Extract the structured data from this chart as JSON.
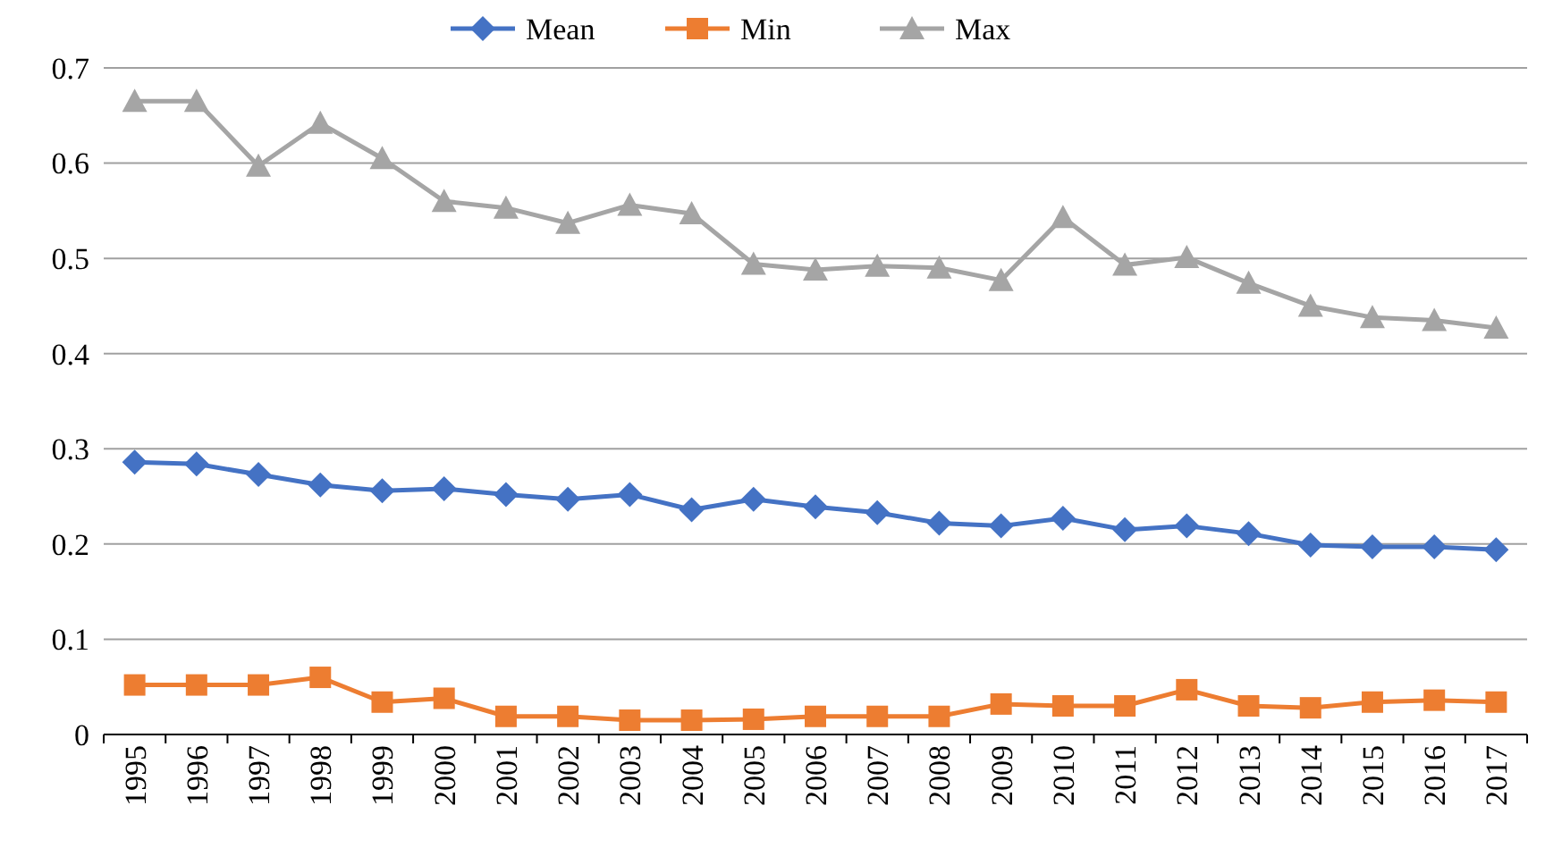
{
  "chart_data": {
    "type": "line",
    "categories": [
      "1995",
      "1996",
      "1997",
      "1998",
      "1999",
      "2000",
      "2001",
      "2002",
      "2003",
      "2004",
      "2005",
      "2006",
      "2007",
      "2008",
      "2009",
      "2010",
      "2011",
      "2012",
      "2013",
      "2014",
      "2015",
      "2016",
      "2017"
    ],
    "series": [
      {
        "name": "Mean",
        "color": "#4472c4",
        "marker": "diamond",
        "values": [
          0.286,
          0.284,
          0.273,
          0.262,
          0.256,
          0.258,
          0.252,
          0.247,
          0.252,
          0.236,
          0.247,
          0.239,
          0.233,
          0.222,
          0.219,
          0.227,
          0.215,
          0.219,
          0.211,
          0.199,
          0.197,
          0.197,
          0.194
        ]
      },
      {
        "name": "Min",
        "color": "#ed7d31",
        "marker": "square",
        "values": [
          0.052,
          0.052,
          0.052,
          0.06,
          0.034,
          0.038,
          0.019,
          0.019,
          0.015,
          0.015,
          0.016,
          0.019,
          0.019,
          0.019,
          0.032,
          0.03,
          0.03,
          0.047,
          0.03,
          0.028,
          0.034,
          0.036,
          0.034
        ]
      },
      {
        "name": "Max",
        "color": "#a5a5a5",
        "marker": "triangle",
        "values": [
          0.665,
          0.665,
          0.597,
          0.642,
          0.605,
          0.56,
          0.553,
          0.537,
          0.556,
          0.547,
          0.494,
          0.488,
          0.492,
          0.49,
          0.477,
          0.543,
          0.493,
          0.501,
          0.474,
          0.45,
          0.438,
          0.435,
          0.427
        ]
      }
    ],
    "ylim": [
      0,
      0.7
    ],
    "yticks": [
      {
        "value": 0,
        "label": "0"
      },
      0.1,
      0.2,
      0.3,
      0.4,
      0.5,
      0.6,
      0.7
    ],
    "grid": "y",
    "legend": "top"
  }
}
